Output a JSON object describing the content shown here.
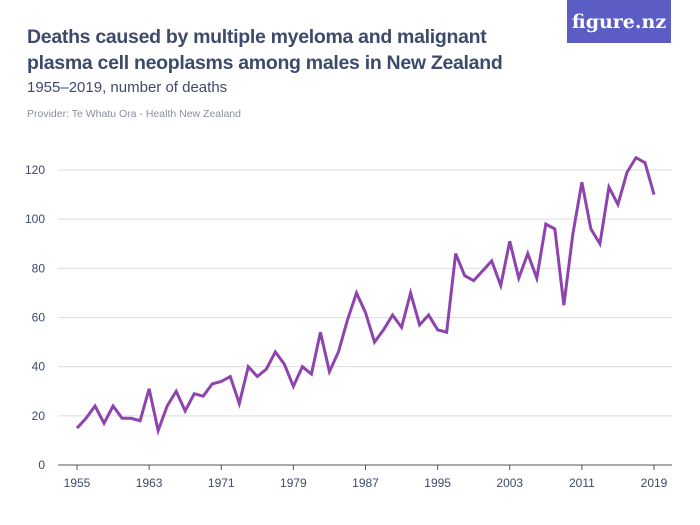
{
  "header": {
    "title": "Deaths caused by multiple myeloma and malignant plasma cell neoplasms among males in New Zealand",
    "subtitle": "1955–2019, number of deaths",
    "provider": "Provider: Te Whatu Ora - Health New Zealand",
    "logo": "figure.nz"
  },
  "chart_data": {
    "type": "line",
    "title": "Deaths caused by multiple myeloma and malignant plasma cell neoplasms among males in New Zealand",
    "xlabel": "",
    "ylabel": "",
    "xlim": [
      1955,
      2019
    ],
    "ylim": [
      0,
      120
    ],
    "x_ticks": [
      "1955",
      "1963",
      "1971",
      "1979",
      "1987",
      "1995",
      "2003",
      "2011",
      "2019"
    ],
    "y_ticks": [
      "0",
      "20",
      "40",
      "60",
      "80",
      "100",
      "120"
    ],
    "grid": true,
    "color": "#8e44ad",
    "x": [
      1955,
      1956,
      1957,
      1958,
      1959,
      1960,
      1961,
      1962,
      1963,
      1964,
      1965,
      1966,
      1967,
      1968,
      1969,
      1970,
      1971,
      1972,
      1973,
      1974,
      1975,
      1976,
      1977,
      1978,
      1979,
      1980,
      1981,
      1982,
      1983,
      1984,
      1985,
      1986,
      1987,
      1988,
      1989,
      1990,
      1991,
      1992,
      1993,
      1994,
      1995,
      1996,
      1997,
      1998,
      1999,
      2000,
      2001,
      2002,
      2003,
      2004,
      2005,
      2006,
      2007,
      2008,
      2009,
      2010,
      2011,
      2012,
      2013,
      2014,
      2015,
      2016,
      2017,
      2018,
      2019
    ],
    "values": [
      15,
      19,
      24,
      17,
      24,
      19,
      19,
      18,
      31,
      14,
      24,
      30,
      22,
      29,
      28,
      33,
      34,
      36,
      25,
      40,
      36,
      39,
      46,
      41,
      32,
      40,
      37,
      54,
      38,
      46,
      59,
      70,
      62,
      50,
      55,
      61,
      56,
      70,
      57,
      61,
      55,
      54,
      86,
      77,
      75,
      79,
      83,
      73,
      91,
      76,
      86,
      76,
      98,
      96,
      65,
      94,
      115,
      96,
      90,
      113,
      106,
      119,
      125,
      123,
      110
    ]
  }
}
